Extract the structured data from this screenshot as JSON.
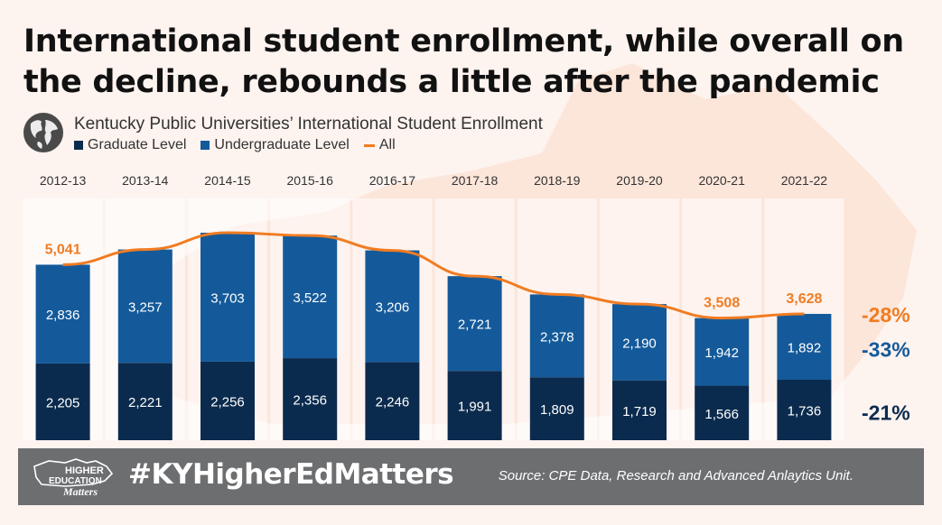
{
  "headline": "International student enrollment, while overall on the decline, rebounds a little after the pandemic",
  "subtitle": "Kentucky Public Universities’ International Student Enrollment",
  "legend": [
    {
      "label": "Graduate Level",
      "color": "#0b2b4e",
      "kind": "box"
    },
    {
      "label": "Undergraduate Level",
      "color": "#145a9a",
      "kind": "box"
    },
    {
      "label": "All",
      "color": "#f07c22",
      "kind": "line"
    }
  ],
  "chart_data": {
    "type": "bar",
    "stacked": true,
    "categories": [
      "2012-13",
      "2013-14",
      "2014-15",
      "2015-16",
      "2016-17",
      "2017-18",
      "2018-19",
      "2019-20",
      "2020-21",
      "2021-22"
    ],
    "series": [
      {
        "name": "Graduate Level",
        "color": "#0b2b4e",
        "values": [
          2205,
          2221,
          2256,
          2356,
          2246,
          1991,
          1809,
          1719,
          1566,
          1736
        ]
      },
      {
        "name": "Undergraduate Level",
        "color": "#145a9a",
        "values": [
          2836,
          3257,
          3703,
          3522,
          3206,
          2721,
          2378,
          2190,
          1942,
          1892
        ]
      },
      {
        "name": "All",
        "color": "#f07c22",
        "type": "line",
        "values": [
          5041,
          5478,
          5959,
          5878,
          5452,
          4712,
          4187,
          3909,
          3508,
          3628
        ]
      }
    ],
    "total_labels": [
      {
        "index": 0,
        "text": "5,041"
      },
      {
        "index": 8,
        "text": "3,508"
      },
      {
        "index": 9,
        "text": "3,628"
      }
    ],
    "change_labels": [
      {
        "text": "-28%",
        "color": "#f07c22",
        "series": "All"
      },
      {
        "text": "-33%",
        "color": "#145a9a",
        "series": "Undergraduate Level"
      },
      {
        "text": "-21%",
        "color": "#0b2b4e",
        "series": "Graduate Level"
      }
    ],
    "ylim": [
      0,
      6100
    ],
    "grid": false
  },
  "footer": {
    "logo_text": [
      "HIGHER",
      "EDUCATION",
      "Matters"
    ],
    "hashtag": "#KYHigherEdMatters",
    "source": "Source: CPE Data, Research and Advanced Anlaytics Unit."
  }
}
